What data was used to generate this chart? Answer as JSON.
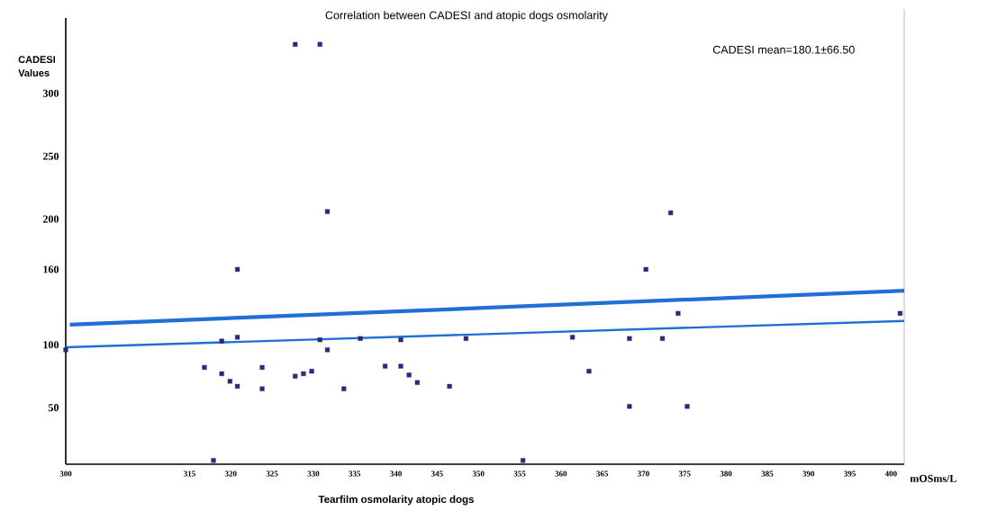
{
  "chart_data": {
    "type": "scatter",
    "title": "Correlation between CADESI and atopic dogs osmolarity",
    "xlabel": "Tearfilm osmolarity atopic dogs",
    "ylabel": "CADESI Values",
    "annotations": [
      "CADESI mean=180.1±66.50",
      "mOSms/L"
    ],
    "xlim": [
      300,
      401.6
    ],
    "ylim": [
      5,
      360
    ],
    "xticks": [
      300,
      315,
      320,
      325,
      330,
      335,
      340,
      345,
      350,
      355,
      360,
      365,
      370,
      375,
      380,
      385,
      390,
      395,
      400
    ],
    "yticks": [
      50,
      100,
      160,
      200,
      250,
      300
    ],
    "grid": false,
    "marker": "square",
    "series": [
      {
        "color": "#2b2a7a",
        "x": [
          300,
          316.8,
          318.9,
          318.9,
          319.9,
          320.8,
          320.8,
          320.8,
          323.8,
          323.8,
          327.8,
          328.8,
          329.8,
          330.8,
          331.7,
          333.7,
          335.7,
          338.7,
          340.6,
          340.6,
          341.6,
          342.6,
          346.5,
          348.5,
          317.9,
          355.4,
          327.8,
          330.8,
          331.7,
          361.4,
          363.4,
          368.3,
          368.3,
          370.3,
          372.3,
          374.2,
          375.3,
          401.1,
          373.3
        ],
        "values": [
          96,
          82,
          103,
          77,
          71,
          67,
          106,
          160,
          82,
          65,
          75,
          77,
          79,
          104,
          96,
          65,
          105,
          83,
          104,
          83,
          76,
          70,
          67,
          105,
          8,
          8,
          339,
          339,
          206,
          106,
          79,
          105,
          51,
          160,
          105,
          125,
          51,
          125,
          205
        ]
      },
      {
        "type": "line",
        "marker": "none",
        "color": "#1f6fd6",
        "x": [
          300.5,
          401.6
        ],
        "values": [
          116,
          143
        ]
      },
      {
        "type": "line",
        "marker": "none",
        "color": "#1f6fd6",
        "x": [
          300,
          401.6
        ],
        "values": [
          98,
          119
        ]
      }
    ]
  }
}
